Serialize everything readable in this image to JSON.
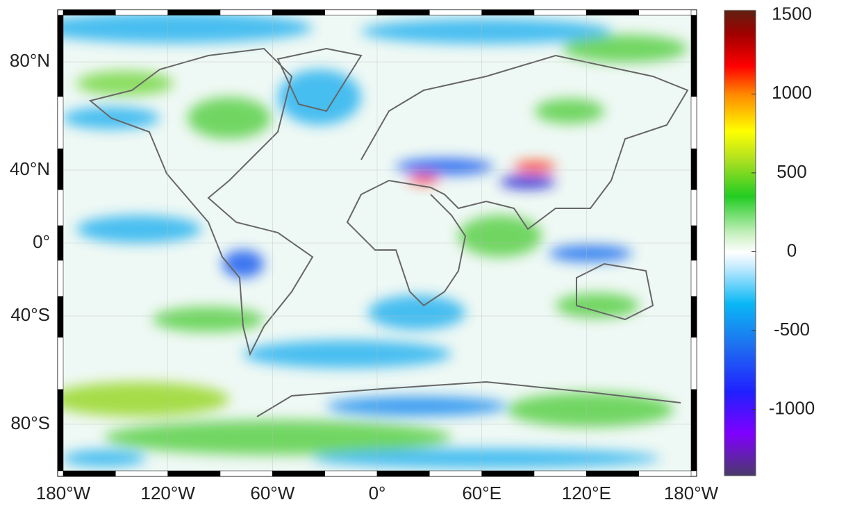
{
  "chart_data": {
    "type": "map",
    "projection": "miller",
    "xlim": [
      -180,
      180
    ],
    "ylim": [
      -90,
      90
    ],
    "xticks": [
      {
        "value": -180,
        "label": "180°W"
      },
      {
        "value": -120,
        "label": "120°W"
      },
      {
        "value": -60,
        "label": "60°W"
      },
      {
        "value": 0,
        "label": "0°"
      },
      {
        "value": 60,
        "label": "60°E"
      },
      {
        "value": 120,
        "label": "120°E"
      },
      {
        "value": 180,
        "label": "180°W"
      }
    ],
    "yticks": [
      {
        "value": -80,
        "label": "80°S"
      },
      {
        "value": -40,
        "label": "40°S"
      },
      {
        "value": 0,
        "label": "0°"
      },
      {
        "value": 40,
        "label": "40°N"
      },
      {
        "value": 80,
        "label": "80°N"
      }
    ],
    "grid": true,
    "colorbar": {
      "clim": [
        -1420,
        1530
      ],
      "ticks": [
        -1000,
        -500,
        0,
        500,
        1000,
        1500
      ]
    }
  }
}
